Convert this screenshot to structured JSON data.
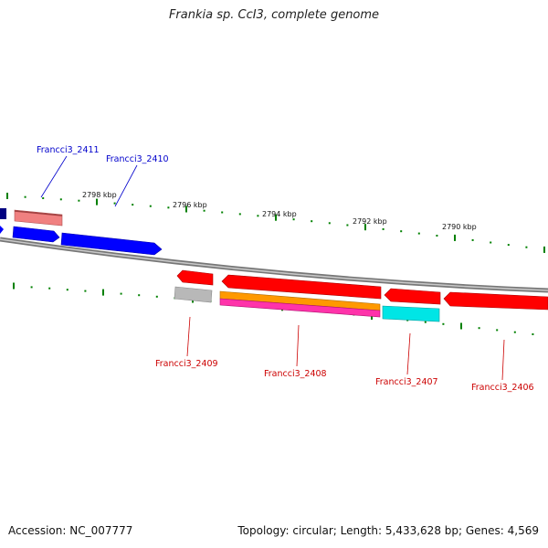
{
  "title": "Frankia sp. CcI3, complete genome",
  "scale": {
    "ticks": [
      {
        "label": "2798 kbp"
      },
      {
        "label": "2796 kbp"
      },
      {
        "label": "2794 kbp"
      },
      {
        "label": "2792 kbp"
      },
      {
        "label": "2790 kbp"
      }
    ]
  },
  "genes_forward": [
    {
      "label": "Francci3_2411",
      "color": "#0000cc"
    },
    {
      "label": "Francci3_2410",
      "color": "#0000cc"
    }
  ],
  "genes_reverse": [
    {
      "label": "Francci3_2409",
      "color": "#cc0000"
    },
    {
      "label": "Francci3_2408",
      "color": "#cc0000"
    },
    {
      "label": "Francci3_2407",
      "color": "#cc0000"
    },
    {
      "label": "Francci3_2406",
      "color": "#cc0000"
    }
  ],
  "colors": {
    "forward_strand": "#0000ff",
    "reverse_strand": "#ff0000",
    "backbone": "#888888",
    "ticks": "#008000",
    "cog_pink": "#f08080",
    "cog_gray": "#b0b0b0",
    "cog_orange": "#ff9900",
    "cog_magenta": "#ff33aa",
    "cog_cyan": "#00e5e5",
    "cog_navy": "#000080"
  },
  "footer": {
    "accession": "Accession: NC_007777",
    "summary": "Topology: circular; Length: 5,433,628 bp; Genes: 4,569"
  }
}
